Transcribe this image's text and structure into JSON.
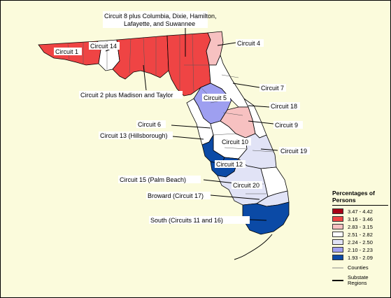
{
  "labels": {
    "circuit8": "Circuit 8 plus Columbia, Dixie, Hamilton,",
    "circuit8b": "Lafayette, and Suwannee",
    "circuit1": "Circuit 1",
    "circuit14": "Circuit 14",
    "circuit4": "Circuit 4",
    "circuit2": "Circuit 2 plus Madison and Taylor",
    "circuit7": "Circuit 7",
    "circuit5": "Circuit 5",
    "circuit18": "Circuit 18",
    "circuit6": "Circuit 6",
    "circuit9": "Circuit 9",
    "circuit13": "Circuit 13 (Hillsborough)",
    "circuit10": "Circuit 10",
    "circuit19": "Circuit 19",
    "circuit12": "Circuit 12",
    "circuit15": "Circuit 15 (Palm Beach)",
    "circuit20": "Circuit 20",
    "broward": "Broward (Circuit 17)",
    "south": "South (Circuits 11 and 16)"
  },
  "legend": {
    "title_line1": "Percentages of",
    "title_line2": "Persons",
    "items": [
      {
        "label": "3.47 - 4.42",
        "color": "#a80015"
      },
      {
        "label": "3.16 - 3.46",
        "color": "#ef4444"
      },
      {
        "label": "2.83 - 3.15",
        "color": "#f7c1c1"
      },
      {
        "label": "2.51 - 2.82",
        "color": "#ffffff"
      },
      {
        "label": "2.24 - 2.50",
        "color": "#e1e3f6"
      },
      {
        "label": "2.10 - 2.23",
        "color": "#9e9ff0"
      },
      {
        "label": "1.93 - 2.09",
        "color": "#0b4aa6"
      }
    ],
    "counties": "Counties",
    "substate_line1": "Substate",
    "substate_line2": "Regions"
  }
}
